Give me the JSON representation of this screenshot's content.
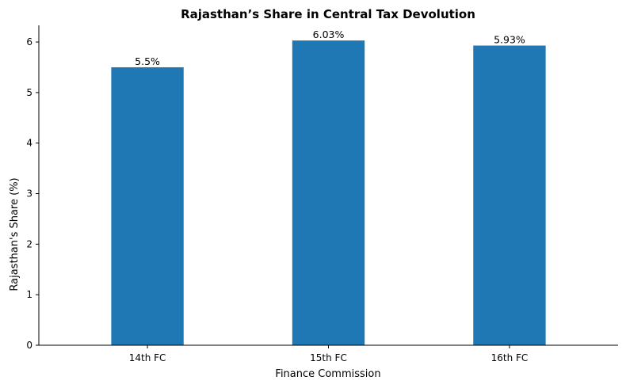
{
  "chart_data": {
    "type": "bar",
    "title": "Rajasthan’s Share in Central Tax Devolution",
    "xlabel": "Finance Commission",
    "ylabel": "Rajasthan's Share (%)",
    "categories": [
      "14th FC",
      "15th FC",
      "16th FC"
    ],
    "values": [
      5.5,
      6.03,
      5.93
    ],
    "data_labels": [
      "5.5%",
      "6.03%",
      "5.93%"
    ],
    "yticks": [
      0,
      1,
      2,
      3,
      4,
      5,
      6
    ],
    "ylim": [
      0,
      6.33
    ],
    "grid": false,
    "bar_color": "#1f77b4"
  }
}
